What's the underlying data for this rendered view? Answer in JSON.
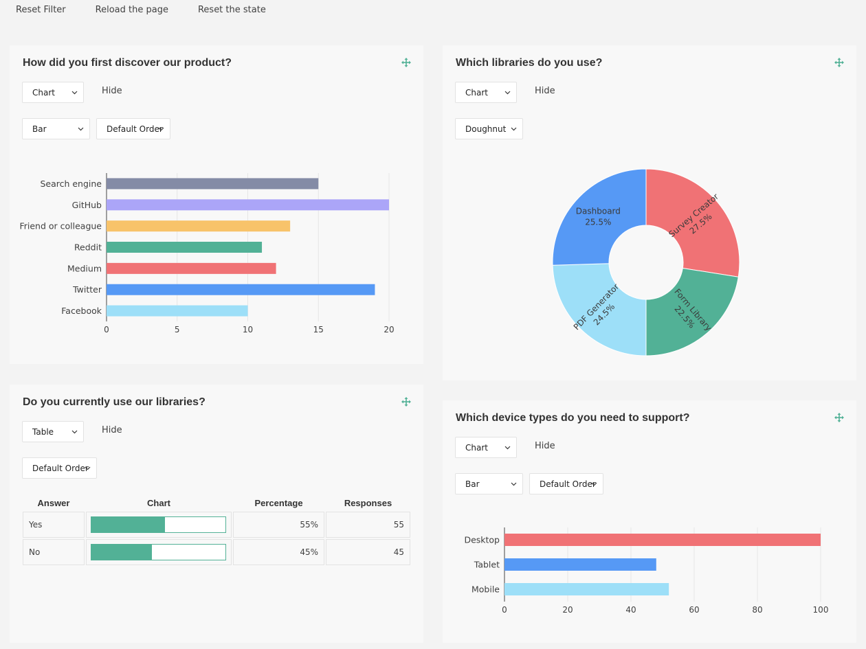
{
  "toolbar": {
    "reset_filter": "Reset Filter",
    "reload_page": "Reload the page",
    "reset_state": "Reset the state"
  },
  "colors": {
    "accent": "#52b196",
    "panel_bg": "#f8f8f8",
    "page_bg": "#f3f3f3"
  },
  "panels": [
    {
      "title": "How did you first discover our product?",
      "visualizer": "Chart",
      "hide_label": "Hide",
      "chart_type": "Bar",
      "order": "Default Order"
    },
    {
      "title": "Which libraries do you use?",
      "visualizer": "Chart",
      "hide_label": "Hide",
      "chart_type": "Doughnut"
    },
    {
      "title": "Do you currently use our libraries?",
      "visualizer": "Table",
      "hide_label": "Hide",
      "order": "Default Order",
      "table": {
        "headers": [
          "Answer",
          "Chart",
          "Percentage",
          "Responses"
        ],
        "rows": [
          {
            "answer": "Yes",
            "percentage": "55%",
            "responses": "55",
            "fraction": 0.55
          },
          {
            "answer": "No",
            "percentage": "45%",
            "responses": "45",
            "fraction": 0.45
          }
        ]
      }
    },
    {
      "title": "Which device types do you need to support?",
      "visualizer": "Chart",
      "hide_label": "Hide",
      "chart_type": "Bar",
      "order": "Default Order"
    }
  ],
  "chart_data": [
    {
      "type": "bar",
      "orientation": "horizontal",
      "categories": [
        "Search engine",
        "GitHub",
        "Friend or colleague",
        "Reddit",
        "Medium",
        "Twitter",
        "Facebook"
      ],
      "values": [
        15,
        20,
        13,
        11,
        12,
        19,
        10
      ],
      "colors": [
        "#848ba6",
        "#aba5f8",
        "#f8c36a",
        "#52b196",
        "#f07275",
        "#5699f5",
        "#9ddff8"
      ],
      "xlim": [
        0,
        20
      ],
      "xticks": [
        "0",
        "5",
        "10",
        "15",
        "20"
      ],
      "grid": true
    },
    {
      "type": "pie",
      "variant": "doughnut",
      "categories": [
        "Survey Creator",
        "Form Library",
        "PDF Generator",
        "Dashboard"
      ],
      "values": [
        27.5,
        22.5,
        24.5,
        25.5
      ],
      "labels": [
        "27.5%",
        "22.5%",
        "24.5%",
        "25.5%"
      ],
      "colors": [
        "#f07275",
        "#52b196",
        "#9ddff8",
        "#5699f5"
      ]
    },
    {
      "type": "bar",
      "orientation": "horizontal",
      "categories": [
        "Desktop",
        "Tablet",
        "Mobile"
      ],
      "values": [
        100,
        48,
        52
      ],
      "colors": [
        "#f07275",
        "#5699f5",
        "#9ddff8"
      ],
      "xlim": [
        0,
        100
      ],
      "xticks": [
        "0",
        "20",
        "40",
        "60",
        "80",
        "100"
      ],
      "grid": true
    }
  ]
}
